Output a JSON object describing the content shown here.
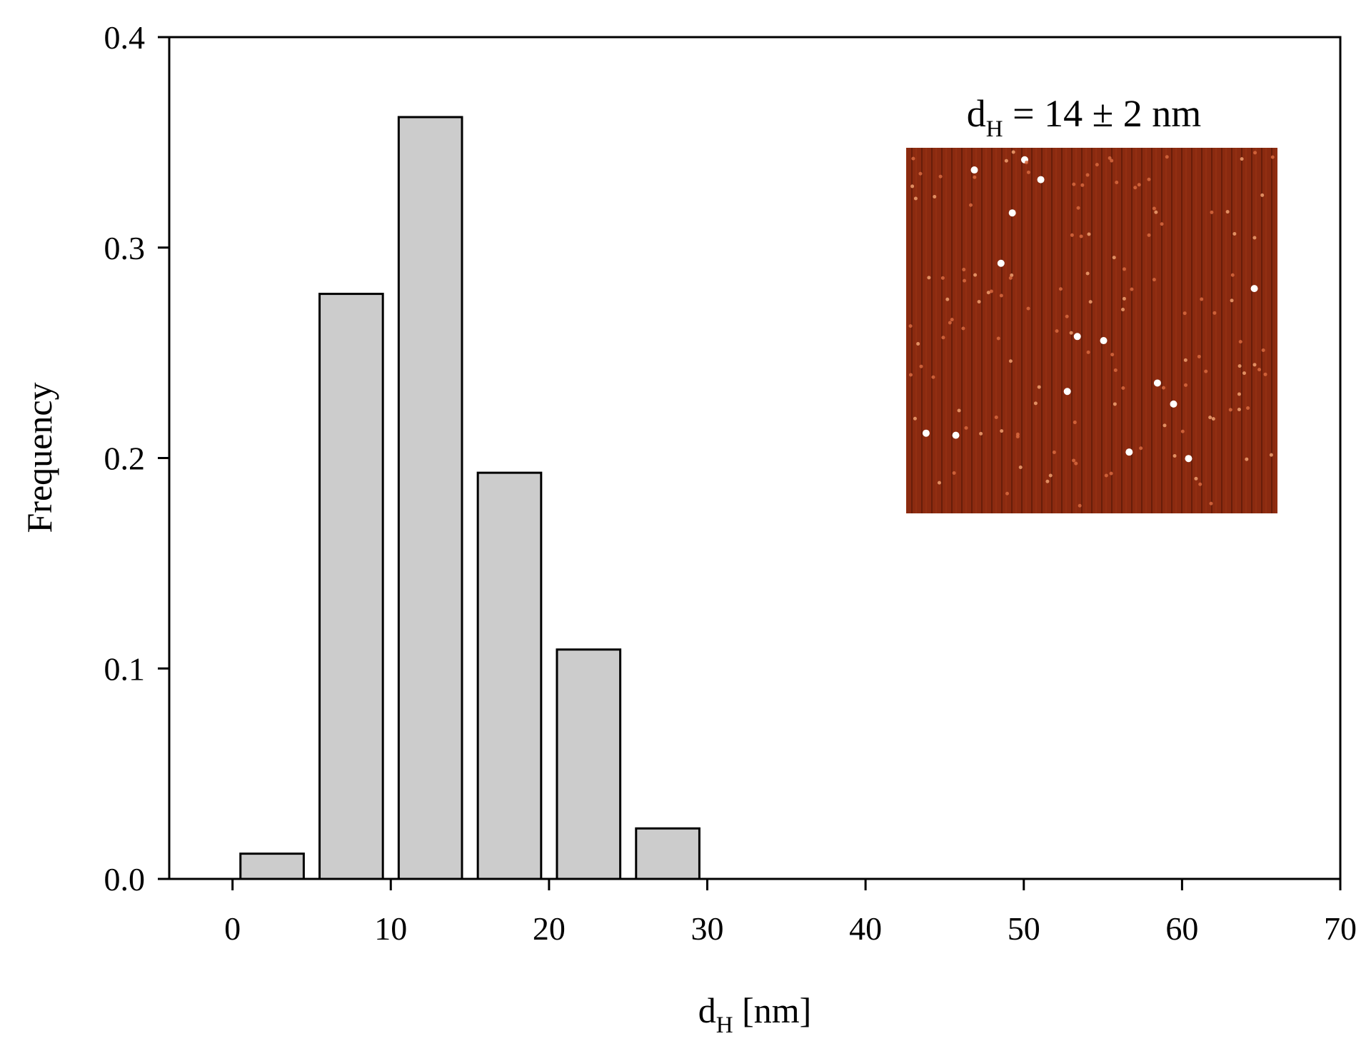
{
  "chart_data": {
    "type": "bar",
    "xlabel": "d",
    "xlabel_sub": "H",
    "xlabel_unit": " [nm]",
    "ylabel": "Frequency",
    "xlim": [
      -4,
      70
    ],
    "ylim": [
      0,
      0.4
    ],
    "xticks": [
      "0",
      "10",
      "20",
      "30",
      "40",
      "50",
      "60",
      "70"
    ],
    "yticks": [
      "0.0",
      "0.1",
      "0.2",
      "0.3",
      "0.4"
    ],
    "bars": [
      {
        "x_start": 0.5,
        "x_end": 4.5,
        "value": 0.012
      },
      {
        "x_start": 5.5,
        "x_end": 9.5,
        "value": 0.278
      },
      {
        "x_start": 10.5,
        "x_end": 14.5,
        "value": 0.362
      },
      {
        "x_start": 15.5,
        "x_end": 19.5,
        "value": 0.193
      },
      {
        "x_start": 20.5,
        "x_end": 24.5,
        "value": 0.109
      },
      {
        "x_start": 25.5,
        "x_end": 29.5,
        "value": 0.024
      }
    ],
    "bar_color": "#cccccc",
    "bar_edge_color": "#000000",
    "grid": false,
    "annotation": {
      "main": "d",
      "sub": "H",
      "rest": " = 14 ± 2 nm"
    },
    "inset_image": "afm-micrograph-inset",
    "inset_color": "#8a2a10"
  }
}
